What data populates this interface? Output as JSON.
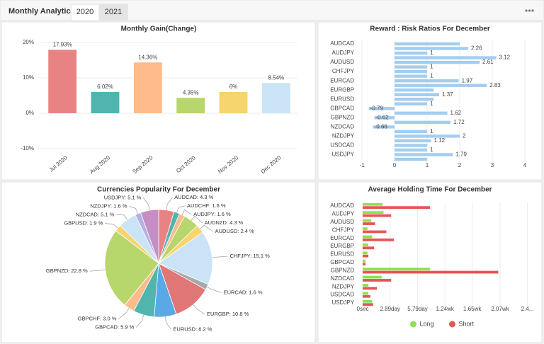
{
  "header": {
    "title": "Monthly Analytics",
    "tabs": [
      "2020",
      "2021"
    ]
  },
  "chart_data": [
    {
      "type": "bar",
      "title": "Monthly Gain(Change)",
      "categories": [
        "Jul 2020",
        "Aug 2020",
        "Sep 2020",
        "Oct 2020",
        "Nov 2020",
        "Dec 2020"
      ],
      "values": [
        17.93,
        6.02,
        14.36,
        4.35,
        6,
        8.54
      ],
      "value_labels": [
        "17.93%",
        "6.02%",
        "14.36%",
        "4.35%",
        "6%",
        "8.54%"
      ],
      "colors": [
        "#e98383",
        "#4fb5ad",
        "#ffbb8c",
        "#b7d66c",
        "#f6d46e",
        "#cbe3f7"
      ],
      "ylim": [
        -10,
        20
      ],
      "yticks": [
        {
          "value": -10,
          "label": "-10%"
        },
        {
          "value": 0,
          "label": "0%"
        },
        {
          "value": 10,
          "label": "10%"
        },
        {
          "value": 20,
          "label": "20%"
        }
      ],
      "grid": true
    },
    {
      "type": "hbar",
      "title": "Reward : Risk Ratios For December",
      "categories": [
        "AUDCAD",
        null,
        "AUDJPY",
        null,
        "AUDUSD",
        null,
        "CHFJPY",
        null,
        "EURCAD",
        null,
        "EURGBP",
        null,
        "EURUSD",
        null,
        "GBPCAD",
        null,
        "GBPNZD",
        null,
        "NZDCAD",
        null,
        "NZDJPY",
        null,
        "USDCAD",
        null,
        "USDJPY",
        null
      ],
      "values": [
        2,
        2.26,
        1,
        3.12,
        2.61,
        1,
        1,
        1,
        1.97,
        2.83,
        1.2,
        1.37,
        1.2,
        1,
        -0.79,
        1.62,
        -0.62,
        1.72,
        -0.66,
        1,
        2,
        1.12,
        1,
        1,
        1.79,
        1
      ],
      "value_labels": [
        null,
        "2.26",
        "1",
        "3.12",
        "2.61",
        "1",
        null,
        "1",
        "1.97",
        "2.83",
        null,
        "1.37",
        null,
        "1",
        "-0.79",
        "1.62",
        "-0.62",
        "1.72",
        "-0.66",
        "1",
        "2",
        "1.12",
        null,
        "1",
        "1.79",
        null
      ],
      "color": "#a3cdf0",
      "xlim": [
        -1,
        4
      ],
      "xticks": [
        -1,
        0,
        1,
        2,
        3,
        4
      ],
      "grid": true
    },
    {
      "type": "pie",
      "title": "Currencies Popularity For December",
      "values": [
        4.3,
        1.6,
        1.6,
        4.3,
        2.4,
        15.1,
        1.6,
        10.8,
        6.2,
        5.9,
        3.0,
        22.8,
        1.9,
        5.1,
        1.6,
        5.1
      ],
      "value_labels": [
        "AUDCAD: 4.3 %",
        "AUDCHF: 1.6 %",
        "AUDJPY: 1.6 %",
        "AUDNZD: 4.3 %",
        "AUDUSD: 2.4 %",
        "CHFJPY: 15.1 %",
        "EURCAD: 1.6 %",
        "EURGBP: 10.8 %",
        "EURUSD: 6.2 %",
        "GBPCAD: 5.9 %",
        "GBPCHF: 3.0 %",
        "GBPNZD: 22.8 %",
        "GBPUSD: 1.9 %",
        "NZDCAD: 5.1 %",
        "NZDJPY: 1.6 %",
        "USDJPY: 5.1 %"
      ],
      "colors": [
        "#e98383",
        "#4fb5ad",
        "#ffbb8c",
        "#b7d66c",
        "#f6d46e",
        "#cbe3f7",
        "#a9a9a9",
        "#e07676",
        "#5aa9e6",
        "#4fb5ad",
        "#ffbb8c",
        "#b7d66c",
        "#f6d46e",
        "#cbe3f7",
        "#b3b0e3",
        "#c58fc5"
      ]
    },
    {
      "type": "hbar",
      "title": "Average Holding Time For December",
      "categories": [
        "AUDCAD",
        "AUDJPY",
        "AUDUSD",
        "CHFJPY",
        "EURCAD",
        "EURGBP",
        "EURUSD",
        "GBPCAD",
        "GBPNZD",
        "NZDCAD",
        "NZDJPY",
        "USDCAD",
        "USDJPY"
      ],
      "series": [
        {
          "name": "Long",
          "color": "#8fe04f",
          "values": [
            2.1,
            2.2,
            0.9,
            0.5,
            1.0,
            0.6,
            0.5,
            0.3,
            7.1,
            2.0,
            0.6,
            0.6,
            1.0
          ]
        },
        {
          "name": "Short",
          "color": "#e55656",
          "values": [
            7.1,
            3.0,
            1.3,
            2.5,
            3.3,
            1.2,
            0.6,
            0.3,
            14.3,
            3.0,
            1.5,
            0.8,
            1.1
          ]
        }
      ],
      "xlim": [
        0,
        17.4
      ],
      "xticks": [
        {
          "value": 0,
          "label": "0sec"
        },
        {
          "value": 2.89,
          "label": "2.89day"
        },
        {
          "value": 5.79,
          "label": "5.79day"
        },
        {
          "value": 8.68,
          "label": "1.24wk"
        },
        {
          "value": 11.55,
          "label": "1.65wk"
        },
        {
          "value": 14.49,
          "label": "2.07wk"
        },
        {
          "value": 17.36,
          "label": "2.4..."
        }
      ],
      "grid": true,
      "legend": "bottom"
    }
  ]
}
